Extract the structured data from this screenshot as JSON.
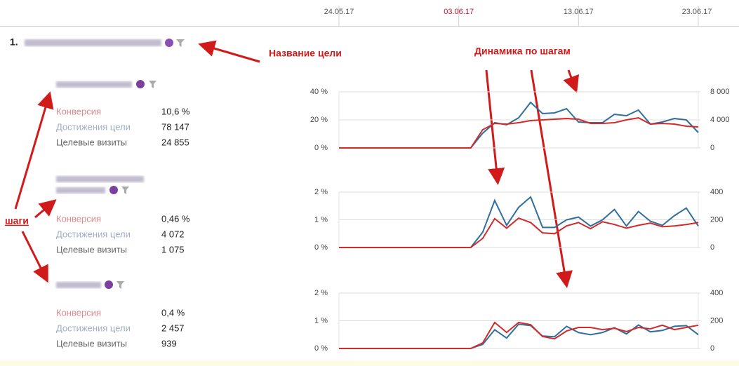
{
  "date_axis": {
    "categories": [
      "24.05.17",
      null,
      null,
      null,
      null,
      null,
      null,
      null,
      null,
      null,
      "03.06.17",
      null,
      null,
      null,
      null,
      null,
      null,
      null,
      null,
      null,
      "13.06.17",
      null,
      null,
      null,
      null,
      null,
      null,
      null,
      null,
      null,
      "23.06.17"
    ],
    "highlight_index": 10,
    "color": "#555555",
    "highlight_color": "#c8102e"
  },
  "goal": {
    "number": "1."
  },
  "annotations": {
    "goal_name": "Название цели",
    "dynamics": "Динамика по шагам",
    "steps": "шаги"
  },
  "steps": [
    {
      "metrics": [
        {
          "label": "Конверсия",
          "value": "10,6 %"
        },
        {
          "label": "Достижения цели",
          "value": "78 147"
        },
        {
          "label": "Целевые визиты",
          "value": "24 855"
        }
      ]
    },
    {
      "metrics": [
        {
          "label": "Конверсия",
          "value": "0,46 %"
        },
        {
          "label": "Достижения цели",
          "value": "4 072"
        },
        {
          "label": "Целевые визиты",
          "value": "1 075"
        }
      ]
    },
    {
      "metrics": [
        {
          "label": "Конверсия",
          "value": "0,4 %"
        },
        {
          "label": "Достижения цели",
          "value": "2 457"
        },
        {
          "label": "Целевые визиты",
          "value": "939"
        }
      ]
    }
  ],
  "metric_colors": [
    "#d98a8f",
    "#a3adc2",
    "#666666"
  ],
  "chart_data": [
    {
      "type": "line",
      "grid": true,
      "ylim": [
        0,
        40
      ],
      "yticks": [
        {
          "value": 0,
          "label": "0 %"
        },
        {
          "value": 20,
          "label": "20 %"
        },
        {
          "value": 40,
          "label": "40 %"
        }
      ],
      "y2lim": [
        0,
        8000
      ],
      "y2ticks": [
        0,
        {
          "value": 4000,
          "label": "4 000"
        },
        {
          "value": 8000,
          "label": "8 000"
        }
      ],
      "series": [
        {
          "color": "#2f6f9f",
          "axis": "y2",
          "values": [
            0,
            0,
            0,
            0,
            0,
            0,
            0,
            0,
            0,
            0,
            0,
            0,
            2100,
            3600,
            3300,
            4300,
            6500,
            4900,
            5000,
            5600,
            3700,
            3600,
            3600,
            4800,
            4600,
            5400,
            3400,
            3700,
            4200,
            4000,
            2200
          ]
        },
        {
          "color": "#d42a2a",
          "values": [
            0,
            0,
            0,
            0,
            0,
            0,
            0,
            0,
            0,
            0,
            0,
            0,
            13,
            17.5,
            17,
            18,
            19.5,
            20,
            20.5,
            21,
            20.5,
            17.5,
            17.5,
            18,
            20,
            21.5,
            17,
            17.5,
            17,
            15.5,
            15
          ]
        }
      ]
    },
    {
      "type": "line",
      "grid": true,
      "ylim": [
        0,
        2
      ],
      "yticks": [
        {
          "value": 0,
          "label": "0 %"
        },
        {
          "value": 1,
          "label": "1 %"
        },
        {
          "value": 2,
          "label": "2 %"
        }
      ],
      "y2lim": [
        0,
        400
      ],
      "y2ticks": [
        0,
        200,
        400
      ],
      "series": [
        {
          "color": "#2f6f9f",
          "axis": "y2",
          "values": [
            0,
            0,
            0,
            0,
            0,
            0,
            0,
            0,
            0,
            0,
            0,
            0,
            110,
            340,
            160,
            290,
            365,
            145,
            145,
            200,
            220,
            155,
            200,
            275,
            155,
            260,
            190,
            160,
            230,
            285,
            155
          ]
        },
        {
          "color": "#d42a2a",
          "values": [
            0,
            0,
            0,
            0,
            0,
            0,
            0,
            0,
            0,
            0,
            0,
            0,
            0.33,
            1.04,
            0.7,
            1.06,
            0.9,
            0.53,
            0.5,
            0.78,
            0.9,
            0.68,
            0.93,
            0.83,
            0.7,
            0.8,
            0.88,
            0.75,
            0.78,
            0.83,
            0.9
          ]
        }
      ]
    },
    {
      "type": "line",
      "grid": true,
      "ylim": [
        0,
        2
      ],
      "yticks": [
        {
          "value": 0,
          "label": "0 %"
        },
        {
          "value": 1,
          "label": "1 %"
        },
        {
          "value": 2,
          "label": "2 %"
        }
      ],
      "y2lim": [
        0,
        400
      ],
      "y2ticks": [
        0,
        200,
        400
      ],
      "series": [
        {
          "color": "#2f6f9f",
          "axis": "y2",
          "values": [
            0,
            0,
            0,
            0,
            0,
            0,
            0,
            0,
            0,
            0,
            0,
            0,
            30,
            135,
            75,
            175,
            165,
            90,
            85,
            160,
            115,
            100,
            115,
            150,
            105,
            170,
            120,
            130,
            160,
            165,
            100
          ]
        },
        {
          "color": "#d42a2a",
          "values": [
            0,
            0,
            0,
            0,
            0,
            0,
            0,
            0,
            0,
            0,
            0,
            0,
            0.2,
            0.94,
            0.58,
            0.94,
            0.86,
            0.43,
            0.35,
            0.63,
            0.76,
            0.76,
            0.68,
            0.73,
            0.61,
            0.76,
            0.71,
            0.84,
            0.68,
            0.76,
            0.84
          ]
        }
      ]
    }
  ]
}
